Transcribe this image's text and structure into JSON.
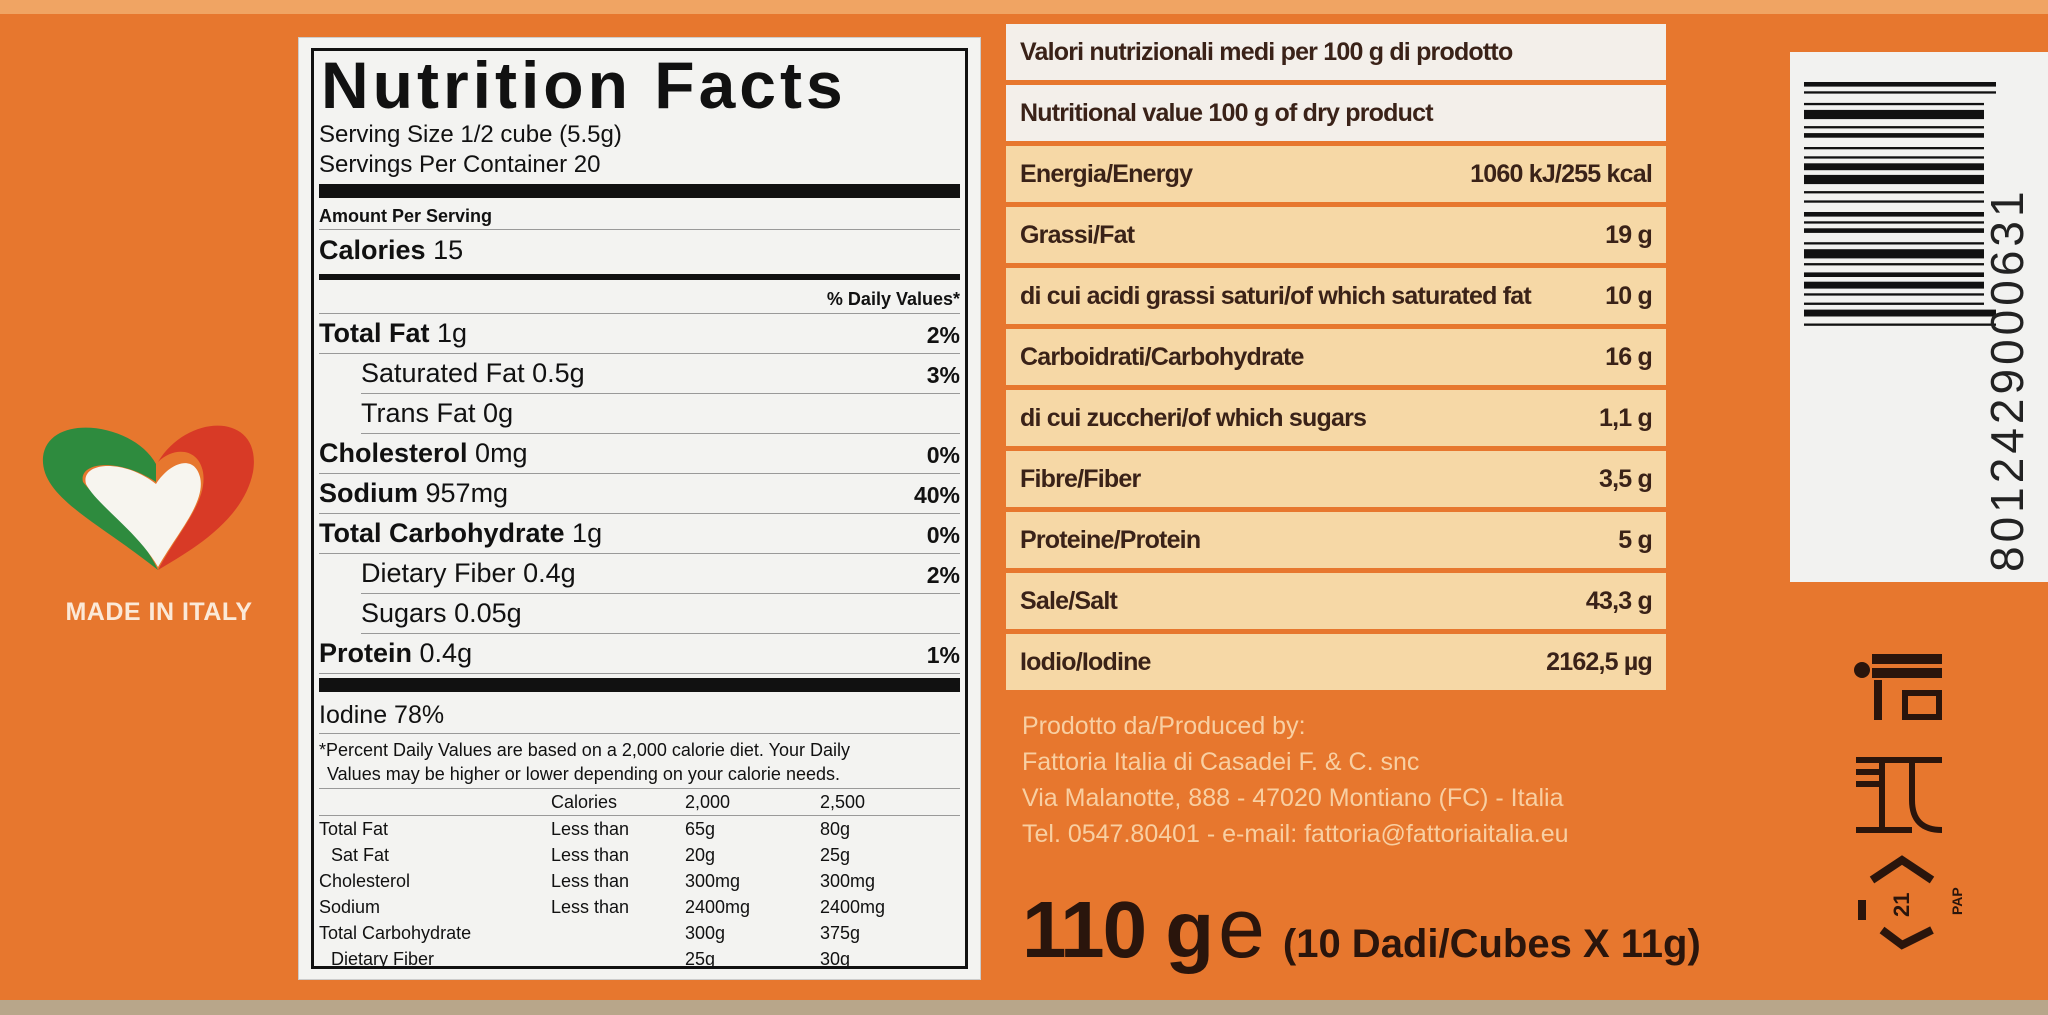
{
  "colors": {
    "package": "#e7772e",
    "label_bg": "#f3f3f1",
    "table_row": "#f6d8a6",
    "table_header": "#f3efea",
    "text_dark": "#3a2218",
    "heart_green": "#2e8b3e",
    "heart_red": "#d83a26"
  },
  "branding": {
    "made_in": "MADE IN ITALY",
    "icon": "italian-heart-logo"
  },
  "nutrition_facts": {
    "title": "Nutrition Facts",
    "serving_size": "Serving Size 1/2 cube (5.5g)",
    "servings_per_container": "Servings Per Container 20",
    "amount_per_serving": "Amount Per Serving",
    "calories_label": "Calories",
    "calories_value": "15",
    "daily_values_header": "% Daily Values*",
    "rows": [
      {
        "name": "Total Fat",
        "amount": "1g",
        "pct": "2%",
        "bold": true
      },
      {
        "name": "Saturated Fat",
        "amount": "0.5g",
        "pct": "3%",
        "bold": false
      },
      {
        "name": "Trans Fat",
        "amount": "0g",
        "pct": "",
        "bold": false
      },
      {
        "name": "Cholesterol",
        "amount": "0mg",
        "pct": "0%",
        "bold": true
      },
      {
        "name": "Sodium",
        "amount": "957mg",
        "pct": "40%",
        "bold": true
      },
      {
        "name": "Total Carbohydrate",
        "amount": "1g",
        "pct": "0%",
        "bold": true
      },
      {
        "name": "Dietary Fiber",
        "amount": "0.4g",
        "pct": "2%",
        "bold": false
      },
      {
        "name": "Sugars",
        "amount": "0.05g",
        "pct": "",
        "bold": false
      },
      {
        "name": "Protein",
        "amount": "0.4g",
        "pct": "1%",
        "bold": true
      }
    ],
    "iodine": "Iodine 78%",
    "footnote_1": "*Percent Daily Values are based on a 2,000 calorie diet. Your Daily",
    "footnote_2": "Values may be higher or lower depending on your calorie needs.",
    "footer_table": {
      "header": [
        "",
        "Calories",
        "2,000",
        "2,500"
      ],
      "rows": [
        [
          "Total Fat",
          "Less than",
          "65g",
          "80g"
        ],
        [
          "  Sat Fat",
          "Less than",
          "20g",
          "25g"
        ],
        [
          "Cholesterol",
          "Less than",
          "300mg",
          "300mg"
        ],
        [
          "Sodium",
          "Less than",
          "2400mg",
          "2400mg"
        ],
        [
          "Total Carbohydrate",
          "",
          "300g",
          "375g"
        ],
        [
          "  Dietary Fiber",
          "",
          "25g",
          "30g"
        ]
      ]
    }
  },
  "italian_table": {
    "header_1": "Valori nutrizionali medi per 100 g di prodotto",
    "header_2": "Nutritional value 100 g of dry product",
    "rows": [
      {
        "label": "Energia/Energy",
        "value": "1060 kJ/255 kcal"
      },
      {
        "label": "Grassi/Fat",
        "value": "19 g"
      },
      {
        "label": "di cui acidi grassi saturi/of which saturated  fat",
        "value": "10 g"
      },
      {
        "label": "Carboidrati/Carbohydrate",
        "value": "16 g"
      },
      {
        "label": "di cui zuccheri/of which sugars",
        "value": "1,1 g"
      },
      {
        "label": "Fibre/Fiber",
        "value": "3,5 g"
      },
      {
        "label": "Proteine/Protein",
        "value": "5 g"
      },
      {
        "label": "Sale/Salt",
        "value": "43,3 g"
      },
      {
        "label": "Iodio/Iodine",
        "value": "2162,5 µg"
      }
    ]
  },
  "producer": {
    "line1": "Prodotto da/Produced by:",
    "line2": "Fattoria Italia di Casadei F. & C. snc",
    "line3": "Via Malanotte, 888 - 47020 Montiano (FC) - Italia",
    "line4": "Tel. 0547.80401 - e-mail: fattoria@fattoriaitalia.eu"
  },
  "weight": {
    "net": "110 g",
    "estimate_mark": "e",
    "cubes": "(10 Dadi/Cubes X 11g)"
  },
  "barcode": {
    "number": "8012429000631"
  },
  "recycling": {
    "code": "21",
    "material": "PAP",
    "icons": [
      "tidyman-icon",
      "food-contact-icon",
      "recycling-paper-icon"
    ]
  }
}
